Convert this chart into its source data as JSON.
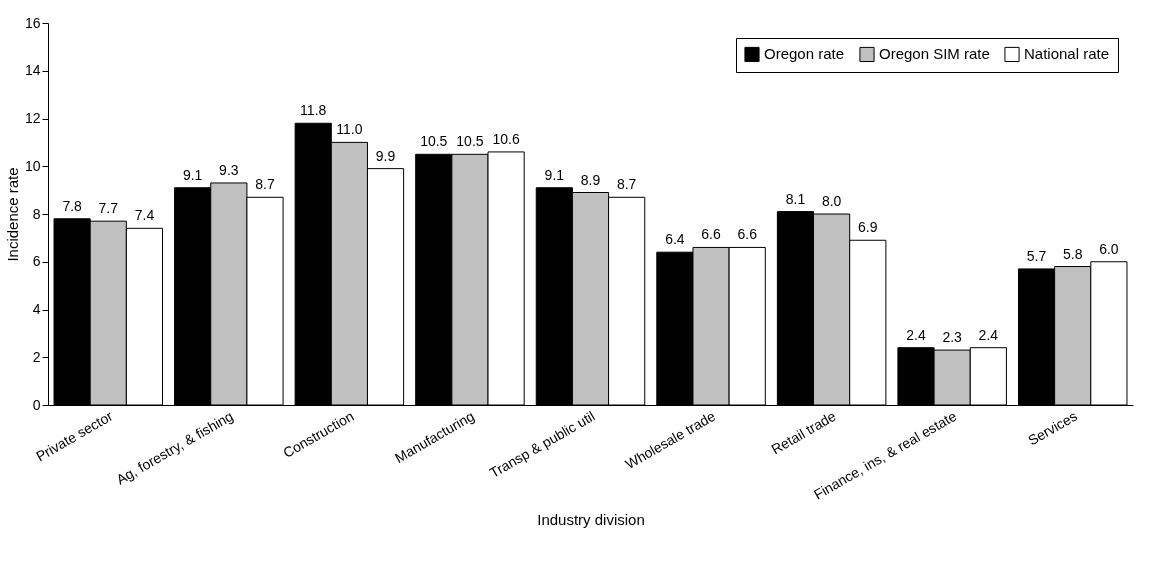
{
  "chart_data": {
    "type": "bar",
    "xlabel": "Industry division",
    "ylabel": "Incidence rate",
    "categories": [
      "Private sector",
      "Ag, forestry, & fishing",
      "Construction",
      "Manufacturing",
      "Transp & public util",
      "Wholesale trade",
      "Retail trade",
      "Finance, ins, & real estate",
      "Services"
    ],
    "series": [
      {
        "name": "Oregon rate",
        "color": "#000000",
        "values": [
          7.8,
          9.1,
          11.8,
          10.5,
          9.1,
          6.4,
          8.1,
          2.4,
          5.7
        ],
        "value_labels": [
          "7.8",
          "9.1",
          "11.8",
          "10.5",
          "9.1",
          "6.4",
          "8.1",
          "2.4",
          "5.7"
        ]
      },
      {
        "name": "Oregon SIM rate",
        "color": "#c0c0c0",
        "values": [
          7.7,
          9.3,
          11.0,
          10.5,
          8.9,
          6.6,
          8.0,
          2.3,
          5.8
        ],
        "value_labels": [
          "7.7",
          "9.3",
          "11.0",
          "10.5",
          "8.9",
          "6.6",
          "8.0",
          "2.3",
          "5.8"
        ]
      },
      {
        "name": "National rate",
        "color": "#ffffff",
        "values": [
          7.4,
          8.7,
          9.9,
          10.6,
          8.7,
          6.6,
          6.9,
          2.4,
          6.0
        ],
        "value_labels": [
          "7.4",
          "8.7",
          "9.9",
          "10.6",
          "8.7",
          "6.6",
          "6.9",
          "2.4",
          "6.0"
        ]
      }
    ],
    "ylim": [
      0,
      16
    ],
    "yticks": [
      0,
      2,
      4,
      6,
      8,
      10,
      12,
      14,
      16
    ],
    "grid": false,
    "legend": "top right"
  }
}
